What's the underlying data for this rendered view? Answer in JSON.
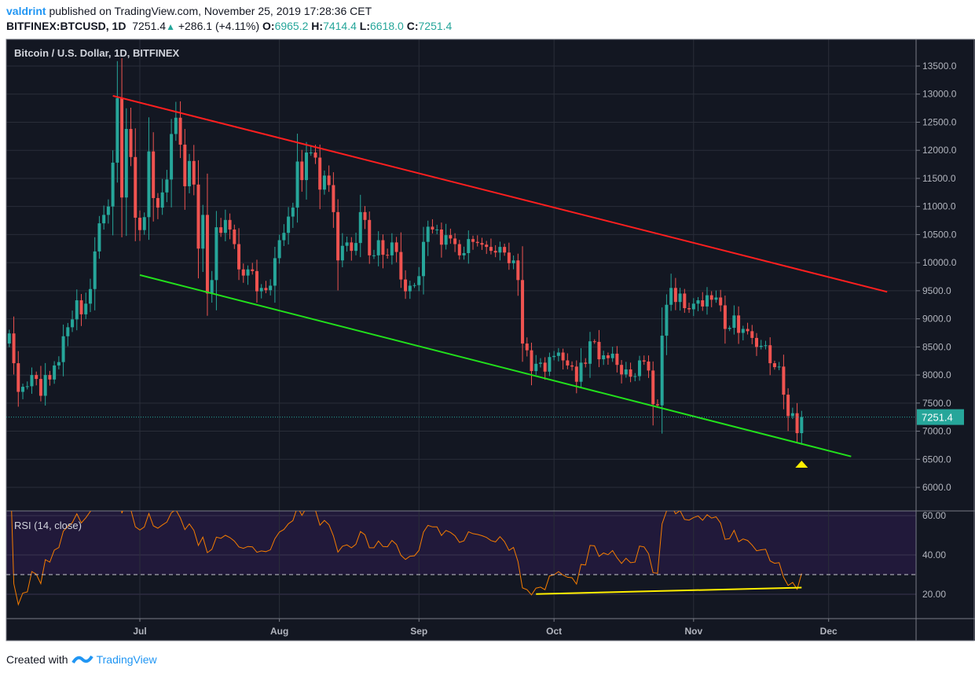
{
  "header": {
    "user": "valdrint",
    "published_text": "published on TradingView.com, November 25, 2019 17:28:36 CET",
    "symbol": "BITFINEX:BTCUSD, 1D",
    "last": "7251.4",
    "change": "+286.1 (+4.11%)",
    "o_label": "O:",
    "o": "6965.2",
    "h_label": "H:",
    "h": "7414.4",
    "l_label": "L:",
    "l": "6618.0",
    "c_label": "C:",
    "c": "7251.4"
  },
  "footer": {
    "created_with": "Created with",
    "brand": "TradingView"
  },
  "colors": {
    "background": "#131722",
    "up": "#26a69a",
    "down": "#ef5350",
    "resistance": "#ff1f1f",
    "support": "#22e01c",
    "rsi": "#f57c00",
    "rsi_trend": "#ffee00",
    "marker": "#ffee00"
  },
  "chart_data": {
    "type": "candlestick",
    "title": "Bitcoin / U.S. Dollar, 1D, BITFINEX",
    "start_date": "2019-06-02",
    "first_open": 8560,
    "closes": [
      8740,
      8210,
      7700,
      7790,
      7800,
      8000,
      7930,
      7630,
      8000,
      7920,
      8170,
      8230,
      8690,
      8850,
      8990,
      9330,
      9080,
      9270,
      9530,
      10200,
      10700,
      10850,
      11000,
      11780,
      12930,
      11160,
      12380,
      11880,
      10800,
      10580,
      10810,
      11980,
      11150,
      10980,
      11250,
      11480,
      12290,
      12580,
      12100,
      11360,
      11810,
      11390,
      10250,
      10850,
      9450,
      9690,
      10630,
      10530,
      10760,
      10590,
      10330,
      9880,
      9770,
      9880,
      9850,
      9490,
      9550,
      9510,
      9590,
      10080,
      10400,
      10530,
      10820,
      10980,
      11800,
      11470,
      11960,
      11960,
      11870,
      11300,
      11550,
      11380,
      10900,
      10040,
      10300,
      10360,
      10210,
      10350,
      10900,
      10760,
      10130,
      10130,
      10400,
      10140,
      10130,
      10360,
      10190,
      9700,
      9490,
      9590,
      9600,
      9760,
      10370,
      10640,
      10590,
      10590,
      10320,
      10490,
      10430,
      10330,
      10130,
      10170,
      10420,
      10370,
      10350,
      10320,
      10280,
      10210,
      10180,
      10280,
      10180,
      9990,
      10040,
      9690,
      8560,
      8440,
      8070,
      8200,
      8220,
      8060,
      8320,
      8340,
      8400,
      8260,
      8170,
      8150,
      7880,
      8220,
      8200,
      8600,
      8590,
      8280,
      8350,
      8300,
      8380,
      8180,
      8010,
      8100,
      7970,
      7980,
      8260,
      8240,
      8080,
      7480,
      7460,
      8700,
      9250,
      9550,
      9300,
      9450,
      9190,
      9170,
      9270,
      9330,
      9220,
      9420,
      9340,
      9380,
      9240,
      8820,
      8840,
      9060,
      8750,
      8820,
      8780,
      8660,
      8500,
      8520,
      8530,
      8210,
      8140,
      8150,
      7650,
      7270,
      7320,
      6965.2,
      7251.4
    ],
    "last_price_label": "7251.4",
    "y_ticks": [
      "13500.0",
      "13000.0",
      "12500.0",
      "12000.0",
      "11500.0",
      "11000.0",
      "10500.0",
      "10000.0",
      "9500.0",
      "9000.0",
      "8500.0",
      "8000.0",
      "7500.0",
      "7000.0",
      "6500.0",
      "6000.0"
    ],
    "x_ticks": [
      {
        "label": "Jul",
        "date": "2019-07-01"
      },
      {
        "label": "Aug",
        "date": "2019-08-01"
      },
      {
        "label": "Sep",
        "date": "2019-09-01"
      },
      {
        "label": "Oct",
        "date": "2019-10-01"
      },
      {
        "label": "Nov",
        "date": "2019-11-01"
      },
      {
        "label": "Dec",
        "date": "2019-12-01"
      }
    ],
    "ylim": [
      5600,
      13900
    ],
    "drawings": {
      "resistance": [
        {
          "date": "2019-06-25",
          "price": 12970
        },
        {
          "date": "2019-12-14",
          "price": 9480
        }
      ],
      "support": [
        {
          "date": "2019-07-01",
          "price": 9780
        },
        {
          "date": "2019-12-06",
          "price": 6550
        }
      ],
      "marker": {
        "date": "2019-11-25",
        "price": 6420,
        "shape": "triangle-up"
      }
    },
    "rsi": {
      "label": "RSI (14, close)",
      "y_ticks": [
        "60.00",
        "40.00",
        "20.00"
      ],
      "ylim": [
        7.5,
        62.5
      ],
      "band": [
        30,
        70
      ],
      "trendline": [
        {
          "date": "2019-09-27",
          "value": 20.1
        },
        {
          "date": "2019-11-25",
          "value": 23.4
        }
      ]
    }
  }
}
